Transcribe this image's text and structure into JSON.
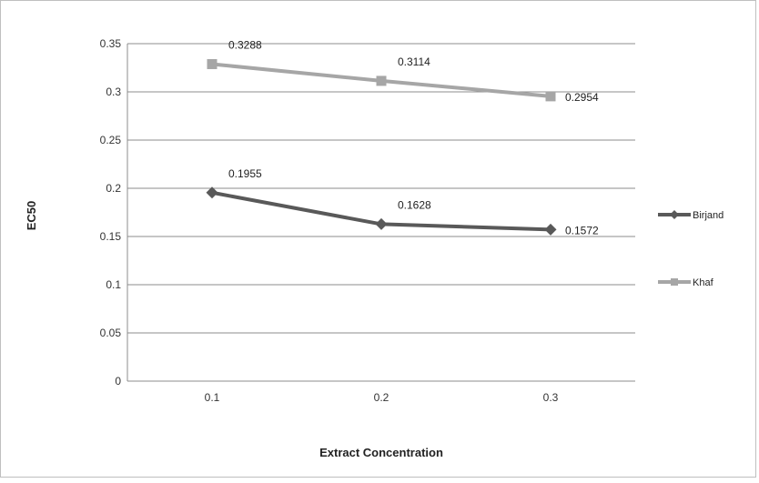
{
  "chart_data": {
    "type": "line",
    "categories": [
      "0.1",
      "0.2",
      "0.3"
    ],
    "series": [
      {
        "name": "Birjand",
        "values": [
          0.1955,
          0.1628,
          0.1572
        ],
        "labels": [
          "0.1955",
          "0.1628",
          "0.1572"
        ],
        "color": "#595959",
        "marker": "diamond"
      },
      {
        "name": "Khaf",
        "values": [
          0.3288,
          0.3114,
          0.2954
        ],
        "labels": [
          "0.3288",
          "0.3114",
          "0.2954"
        ],
        "color": "#a6a6a6",
        "marker": "square"
      }
    ],
    "yticks": [
      "0",
      "0.05",
      "0.1",
      "0.15",
      "0.2",
      "0.25",
      "0.3",
      "0.35"
    ],
    "ylim": [
      0,
      0.35
    ],
    "xlabel": "Extract Concentration",
    "ylabel": "EC50",
    "grid": true,
    "legend": "right",
    "gridColor": "#8c8c8c"
  }
}
